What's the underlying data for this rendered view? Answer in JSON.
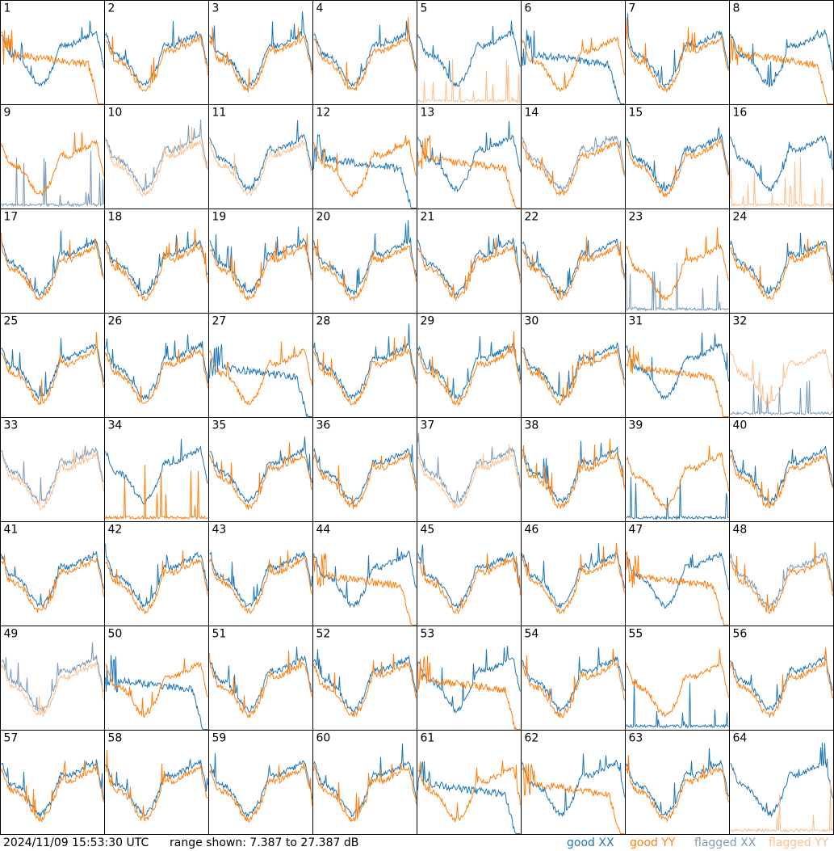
{
  "footer": {
    "timestamp": "2024/11/09 15:53:30 UTC",
    "range_text": "range shown: 7.387 to 27.387 dB",
    "legend": [
      {
        "label": "good XX",
        "color": "#1f77b4"
      },
      {
        "label": "good YY",
        "color": "#ff7f0e"
      },
      {
        "label": "flagged XX",
        "color": "#7b9bb8"
      },
      {
        "label": "flagged YY",
        "color": "#ffbf8c"
      }
    ]
  },
  "chart_data": {
    "type": "line",
    "grid": {
      "rows": 8,
      "cols": 8
    },
    "ylim": [
      7.387,
      27.387
    ],
    "y_unit": "dB",
    "colors": {
      "good_xx": "#1f77b4",
      "good_yy": "#ff7f0e",
      "flagged_xx": "#7b9bb8",
      "flagged_yy": "#ffbf8c"
    },
    "panels": [
      {
        "label": "1",
        "xx": "good",
        "yy": "good",
        "yy_shape": "droop"
      },
      {
        "label": "2",
        "xx": "good",
        "yy": "good"
      },
      {
        "label": "3",
        "xx": "good",
        "yy": "good"
      },
      {
        "label": "4",
        "xx": "good",
        "yy": "good"
      },
      {
        "label": "5",
        "xx": "good",
        "yy": "flagged",
        "yy_shape": "dead"
      },
      {
        "label": "6",
        "xx": "good",
        "yy": "good",
        "xx_shape": "droop"
      },
      {
        "label": "7",
        "xx": "good",
        "yy": "good"
      },
      {
        "label": "8",
        "xx": "good",
        "yy": "good",
        "yy_shape": "droop"
      },
      {
        "label": "9",
        "xx": "flagged",
        "yy": "good",
        "xx_shape": "dead"
      },
      {
        "label": "10",
        "xx": "flagged",
        "yy": "flagged"
      },
      {
        "label": "11",
        "xx": "good",
        "yy": "flagged"
      },
      {
        "label": "12",
        "xx": "good",
        "yy": "good",
        "xx_shape": "droop"
      },
      {
        "label": "13",
        "xx": "good",
        "yy": "good",
        "yy_shape": "droop"
      },
      {
        "label": "14",
        "xx": "flagged",
        "yy": "good"
      },
      {
        "label": "15",
        "xx": "good",
        "yy": "good"
      },
      {
        "label": "16",
        "xx": "good",
        "yy": "flagged",
        "yy_shape": "dead"
      },
      {
        "label": "17",
        "xx": "good",
        "yy": "good"
      },
      {
        "label": "18",
        "xx": "good",
        "yy": "good"
      },
      {
        "label": "19",
        "xx": "good",
        "yy": "good"
      },
      {
        "label": "20",
        "xx": "good",
        "yy": "good"
      },
      {
        "label": "21",
        "xx": "good",
        "yy": "good"
      },
      {
        "label": "22",
        "xx": "good",
        "yy": "good"
      },
      {
        "label": "23",
        "xx": "flagged",
        "yy": "good",
        "xx_shape": "dead"
      },
      {
        "label": "24",
        "xx": "good",
        "yy": "good"
      },
      {
        "label": "25",
        "xx": "good",
        "yy": "good"
      },
      {
        "label": "26",
        "xx": "good",
        "yy": "good"
      },
      {
        "label": "27",
        "xx": "good",
        "yy": "good",
        "xx_shape": "droop"
      },
      {
        "label": "28",
        "xx": "good",
        "yy": "good"
      },
      {
        "label": "29",
        "xx": "good",
        "yy": "good"
      },
      {
        "label": "30",
        "xx": "good",
        "yy": "good"
      },
      {
        "label": "31",
        "xx": "good",
        "yy": "good",
        "yy_shape": "droop"
      },
      {
        "label": "32",
        "xx": "flagged",
        "yy": "flagged",
        "xx_shape": "dead"
      },
      {
        "label": "33",
        "xx": "flagged",
        "yy": "flagged"
      },
      {
        "label": "34",
        "xx": "good",
        "yy": "good",
        "yy_shape": "dead"
      },
      {
        "label": "35",
        "xx": "good",
        "yy": "good"
      },
      {
        "label": "36",
        "xx": "good",
        "yy": "good"
      },
      {
        "label": "37",
        "xx": "flagged",
        "yy": "flagged"
      },
      {
        "label": "38",
        "xx": "good",
        "yy": "good"
      },
      {
        "label": "39",
        "xx": "good",
        "yy": "good",
        "xx_shape": "dead"
      },
      {
        "label": "40",
        "xx": "good",
        "yy": "good"
      },
      {
        "label": "41",
        "xx": "good",
        "yy": "good"
      },
      {
        "label": "42",
        "xx": "good",
        "yy": "good"
      },
      {
        "label": "43",
        "xx": "good",
        "yy": "good"
      },
      {
        "label": "44",
        "xx": "good",
        "yy": "good",
        "yy_shape": "droop"
      },
      {
        "label": "45",
        "xx": "good",
        "yy": "good"
      },
      {
        "label": "46",
        "xx": "good",
        "yy": "good"
      },
      {
        "label": "47",
        "xx": "good",
        "yy": "good",
        "yy_shape": "droop"
      },
      {
        "label": "48",
        "xx": "flagged",
        "yy": "good"
      },
      {
        "label": "49",
        "xx": "flagged",
        "yy": "flagged"
      },
      {
        "label": "50",
        "xx": "good",
        "yy": "good",
        "xx_shape": "droop"
      },
      {
        "label": "51",
        "xx": "good",
        "yy": "good"
      },
      {
        "label": "52",
        "xx": "good",
        "yy": "good"
      },
      {
        "label": "53",
        "xx": "good",
        "yy": "good",
        "yy_shape": "droop"
      },
      {
        "label": "54",
        "xx": "good",
        "yy": "good"
      },
      {
        "label": "55",
        "xx": "good",
        "yy": "good",
        "xx_shape": "dead"
      },
      {
        "label": "56",
        "xx": "good",
        "yy": "good"
      },
      {
        "label": "57",
        "xx": "good",
        "yy": "good"
      },
      {
        "label": "58",
        "xx": "good",
        "yy": "good"
      },
      {
        "label": "59",
        "xx": "good",
        "yy": "good"
      },
      {
        "label": "60",
        "xx": "good",
        "yy": "good"
      },
      {
        "label": "61",
        "xx": "good",
        "yy": "good",
        "xx_shape": "droop"
      },
      {
        "label": "62",
        "xx": "good",
        "yy": "good",
        "yy_shape": "droop"
      },
      {
        "label": "63",
        "xx": "good",
        "yy": "good"
      },
      {
        "label": "64",
        "xx": "good",
        "yy": "flagged",
        "yy_shape": "dead"
      }
    ]
  }
}
